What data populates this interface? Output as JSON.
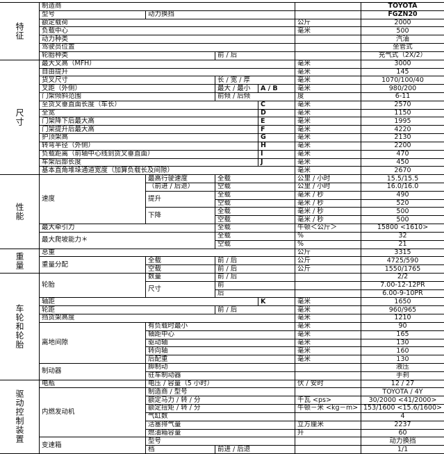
{
  "sections": [
    {
      "title": "特征",
      "groups": [
        {
          "label": "制造商",
          "items": [
            {
              "rows": [
                {
                  "value": "TOYOTA"
                }
              ]
            }
          ]
        },
        {
          "label": "型号",
          "items": [
            {
              "sub": "动力换挡",
              "rows": [
                {
                  "value": "FGZN20"
                }
              ]
            }
          ]
        },
        {
          "label": "额定载荷",
          "items": [
            {
              "rows": [
                {
                  "unit": "公斤",
                  "value": "2000"
                }
              ]
            }
          ]
        },
        {
          "label": "负载中心",
          "items": [
            {
              "rows": [
                {
                  "unit": "毫米",
                  "value": "500"
                }
              ]
            }
          ]
        },
        {
          "label": "动力种类",
          "items": [
            {
              "rows": [
                {
                  "value": "汽油"
                }
              ]
            }
          ]
        },
        {
          "label": "驾驶员位置",
          "items": [
            {
              "rows": [
                {
                  "value": "坐管式"
                }
              ]
            }
          ]
        },
        {
          "label": "轮胎种类",
          "items": [
            {
              "rows": [
                {
                  "cond": "前 / 后",
                  "value": "充气式（2X/2）"
                }
              ]
            }
          ]
        }
      ]
    },
    {
      "title": "尺寸",
      "groups": [
        {
          "label": "最大叉高（MFH）",
          "items": [
            {
              "rows": [
                {
                  "unit": "毫米",
                  "value": "3000"
                }
              ]
            }
          ]
        },
        {
          "label": "自由提升",
          "items": [
            {
              "rows": [
                {
                  "unit": "毫米",
                  "value": "145"
                }
              ]
            }
          ]
        },
        {
          "label": "货叉尺寸",
          "items": [
            {
              "rows": [
                {
                  "cond": "长 / 宽 / 厚",
                  "unit": "毫米",
                  "value": "1070/100/40"
                }
              ]
            }
          ]
        },
        {
          "label": "叉距（外侧）",
          "items": [
            {
              "rows": [
                {
                  "cond": "最大 / 最小",
                  "code": "A / B",
                  "unit": "毫米",
                  "value": "980/200"
                }
              ]
            }
          ]
        },
        {
          "label": "门架倾斜范围",
          "items": [
            {
              "rows": [
                {
                  "cond": "前倾 / 后倾",
                  "unit": "度",
                  "value": "6-11"
                }
              ]
            }
          ]
        },
        {
          "label": "至货叉垂直面长度（车长）",
          "items": [
            {
              "rows": [
                {
                  "code": "C",
                  "unit": "毫米",
                  "value": "2570"
                }
              ]
            }
          ]
        },
        {
          "label": "全宽",
          "items": [
            {
              "rows": [
                {
                  "code": "D",
                  "unit": "毫米",
                  "value": "1150"
                }
              ]
            }
          ]
        },
        {
          "label": "门架降下后最大高",
          "items": [
            {
              "rows": [
                {
                  "code": "E",
                  "unit": "毫米",
                  "value": "1995"
                }
              ]
            }
          ]
        },
        {
          "label": "门架提升后最大高",
          "items": [
            {
              "rows": [
                {
                  "code": "F",
                  "unit": "毫米",
                  "value": "4220"
                }
              ]
            }
          ]
        },
        {
          "label": "护顶架高",
          "items": [
            {
              "rows": [
                {
                  "code": "G",
                  "unit": "毫米",
                  "value": "2130"
                }
              ]
            }
          ]
        },
        {
          "label": "转弯半径（外侧）",
          "items": [
            {
              "rows": [
                {
                  "code": "H",
                  "unit": "毫米",
                  "value": "2200"
                }
              ]
            }
          ]
        },
        {
          "label": "负载距离（前轴中心线到货叉垂直面）",
          "items": [
            {
              "rows": [
                {
                  "code": "I",
                  "unit": "毫米",
                  "value": "470"
                }
              ]
            }
          ]
        },
        {
          "label": "车架后部长度",
          "items": [
            {
              "rows": [
                {
                  "code": "J",
                  "unit": "毫米",
                  "value": "450"
                }
              ]
            }
          ]
        },
        {
          "label": "基本直角堆垛通道宽度（加算负载长及间隙）",
          "items": [
            {
              "rows": [
                {
                  "unit": "毫米",
                  "value": "2670"
                }
              ]
            }
          ]
        }
      ]
    },
    {
      "title": "性能",
      "groups": [
        {
          "label": "速度",
          "items": [
            {
              "sub": "最高行驶速度",
              "rows": [
                {
                  "cond": "全载",
                  "unit": "公里 / 小时",
                  "value": "15.5/15.5"
                }
              ]
            },
            {
              "sub": "（前进 / 后退）",
              "rows": [
                {
                  "cond": "空载",
                  "unit": "公里 / 小时",
                  "value": "16.0/16.0"
                }
              ]
            },
            {
              "sub": "提升",
              "rows": [
                {
                  "cond": "全载",
                  "unit": "毫米 / 秒",
                  "value": "490"
                },
                {
                  "cond": "空载",
                  "unit": "毫米 / 秒",
                  "value": "520"
                }
              ]
            },
            {
              "sub": "下降",
              "rows": [
                {
                  "cond": "全载",
                  "unit": "毫米 / 秒",
                  "value": "500"
                },
                {
                  "cond": "空载",
                  "unit": "毫米 / 秒",
                  "value": "500"
                }
              ]
            }
          ]
        },
        {
          "label": "最大牵引力",
          "items": [
            {
              "rows": [
                {
                  "cond": "全载",
                  "unit": "牛顿＜公斤＞",
                  "value": "15800 <1610>"
                }
              ]
            }
          ]
        },
        {
          "label": "最大爬坡能力＊",
          "items": [
            {
              "rows": [
                {
                  "cond": "全载",
                  "unit": "%",
                  "value": "32"
                },
                {
                  "cond": "空载",
                  "unit": "%",
                  "value": "21"
                }
              ]
            }
          ]
        }
      ]
    },
    {
      "title": "重量",
      "groups": [
        {
          "label": "总重",
          "items": [
            {
              "rows": [
                {
                  "unit": "公斤",
                  "value": "3315"
                }
              ]
            }
          ]
        },
        {
          "label": "重量分配",
          "items": [
            {
              "sub": "全载",
              "rows": [
                {
                  "cond": "前 / 后",
                  "unit": "公斤",
                  "value": "4725/590"
                }
              ]
            },
            {
              "sub": "空载",
              "rows": [
                {
                  "cond": "前 / 后",
                  "unit": "公斤",
                  "value": "1550/1765"
                }
              ]
            }
          ]
        }
      ]
    },
    {
      "title": "车轮和轮胎",
      "groups": [
        {
          "label": "轮胎",
          "items": [
            {
              "sub": "数量",
              "rows": [
                {
                  "cond": "前 / 后",
                  "value": "2/2"
                }
              ]
            },
            {
              "sub": "尺寸",
              "rows": [
                {
                  "cond": "前",
                  "value": "7.00-12-12PR"
                },
                {
                  "cond": "后",
                  "value": "6.00-9-10PR"
                }
              ]
            }
          ]
        },
        {
          "label": "轴距",
          "items": [
            {
              "rows": [
                {
                  "code": "K",
                  "unit": "毫米",
                  "value": "1650"
                }
              ]
            }
          ]
        },
        {
          "label": "轮距",
          "items": [
            {
              "rows": [
                {
                  "cond": "前 / 后",
                  "unit": "毫米",
                  "value": "960/965"
                }
              ]
            }
          ]
        },
        {
          "label": "挡货架高度",
          "items": [
            {
              "rows": [
                {
                  "unit": "毫米",
                  "value": "1210"
                }
              ]
            }
          ]
        },
        {
          "label": "离地间隙",
          "items": [
            {
              "sub": "有负载时最小",
              "rows": [
                {
                  "unit": "毫米",
                  "value": "90"
                }
              ]
            },
            {
              "sub": "轴距中心",
              "rows": [
                {
                  "unit": "毫米",
                  "value": "165"
                }
              ]
            },
            {
              "sub": "驱动轴",
              "rows": [
                {
                  "unit": "毫米",
                  "value": "130"
                }
              ]
            },
            {
              "sub": "转向轴",
              "rows": [
                {
                  "unit": "毫米",
                  "value": "160"
                }
              ]
            },
            {
              "sub": "后配重",
              "rows": [
                {
                  "unit": "毫米",
                  "value": "130"
                }
              ]
            }
          ]
        },
        {
          "label": "制动器",
          "items": [
            {
              "sub": "脚制动",
              "rows": [
                {
                  "value": "液压"
                }
              ]
            },
            {
              "sub": "驻车制动器",
              "rows": [
                {
                  "value": "手刹"
                }
              ]
            }
          ]
        }
      ]
    },
    {
      "title": "驱动控制装置",
      "groups": [
        {
          "label": "电瓶",
          "items": [
            {
              "sub": "电压 / 容量（5 小时）",
              "rows": [
                {
                  "unit": "伏 / 安时",
                  "value": "12 / 27"
                }
              ]
            }
          ]
        },
        {
          "label": "内燃发动机",
          "items": [
            {
              "sub": "制造商 / 型号",
              "rows": [
                {
                  "value": "TOYOTA / 4Y"
                }
              ]
            },
            {
              "sub": "额定马力 / 转 / 分",
              "rows": [
                {
                  "unit": "千瓦 <ps>",
                  "value": "30/2000 <41/2000>"
                }
              ]
            },
            {
              "sub": "额定扭矩 / 转 / 分",
              "rows": [
                {
                  "unit": "牛顿－米 <kg－m>",
                  "value": "153/1600 <15.6/1600>"
                }
              ]
            },
            {
              "sub": "气缸数",
              "rows": [
                {
                  "value": "4"
                }
              ]
            },
            {
              "sub": "活塞排气量",
              "rows": [
                {
                  "unit": "立方厘米",
                  "value": "2237"
                }
              ]
            },
            {
              "sub": "燃油箱容量",
              "rows": [
                {
                  "unit": "升",
                  "value": "60"
                }
              ]
            }
          ]
        },
        {
          "label": "变速箱",
          "items": [
            {
              "sub": "型号",
              "rows": [
                {
                  "value": "动力换挡"
                }
              ]
            },
            {
              "sub": "档",
              "rows": [
                {
                  "cond": "前进 / 后退",
                  "value": "1/1"
                }
              ]
            }
          ]
        }
      ]
    }
  ]
}
